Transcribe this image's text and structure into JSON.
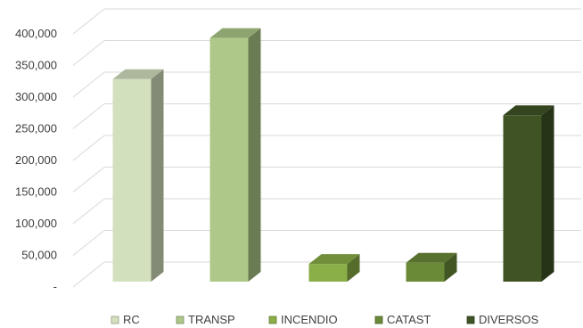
{
  "chart_data": {
    "type": "bar",
    "title": "",
    "xlabel": "",
    "ylabel": "",
    "categories": [
      "RC",
      "TRANSP",
      "INCENDIO",
      "CATAST",
      "DIVERSOS"
    ],
    "values": [
      320000,
      385000,
      28000,
      30000,
      263000
    ],
    "ylim": [
      0,
      400000
    ],
    "yticks": [
      {
        "value": 0,
        "label": "-"
      },
      {
        "value": 50000,
        "label": "50,000"
      },
      {
        "value": 100000,
        "label": "100,000"
      },
      {
        "value": 150000,
        "label": "150,000"
      },
      {
        "value": 200000,
        "label": "200,000"
      },
      {
        "value": 250000,
        "label": "250,000"
      },
      {
        "value": 300000,
        "label": "300,000"
      },
      {
        "value": 350000,
        "label": "350,000"
      },
      {
        "value": 400000,
        "label": "400,000"
      }
    ],
    "grid": true,
    "legend_position": "bottom",
    "style": "3d-column",
    "colors": {
      "RC": "#d3e0be",
      "TRANSP": "#adc888",
      "INCENDIO": "#8aae48",
      "CATAST": "#6b8a38",
      "DIVERSOS": "#3f5324"
    }
  }
}
